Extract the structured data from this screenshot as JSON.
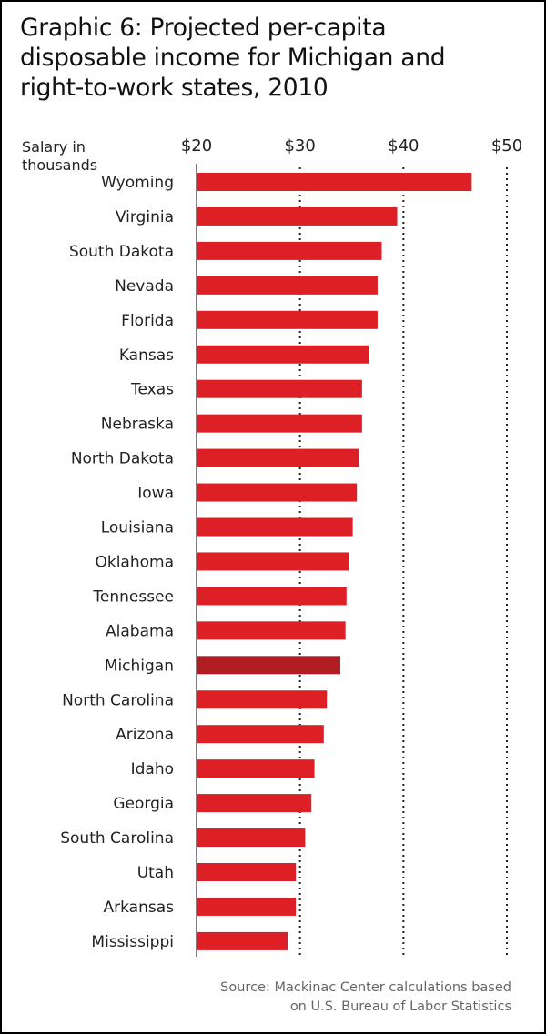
{
  "chart_data": {
    "type": "bar",
    "orientation": "horizontal",
    "title": "Graphic 6: Projected per-capita disposable income for Michigan and right-to-work states, 2010",
    "xlabel": "Salary in thousands",
    "ylabel": "",
    "xlim": [
      20,
      50
    ],
    "xticks": [
      20,
      30,
      40,
      50
    ],
    "xtick_labels": [
      "$20",
      "$30",
      "$40",
      "$50"
    ],
    "grid": "vertical dotted",
    "categories": [
      "Wyoming",
      "Virginia",
      "South Dakota",
      "Nevada",
      "Florida",
      "Kansas",
      "Texas",
      "Nebraska",
      "North Dakota",
      "Iowa",
      "Louisiana",
      "Oklahoma",
      "Tennessee",
      "Alabama",
      "Michigan",
      "North Carolina",
      "Arizona",
      "Idaho",
      "Georgia",
      "South Carolina",
      "Utah",
      "Arkansas",
      "Mississippi"
    ],
    "values": [
      46.6,
      39.4,
      37.9,
      37.5,
      37.5,
      36.7,
      36.0,
      36.0,
      35.7,
      35.5,
      35.1,
      34.7,
      34.5,
      34.4,
      33.9,
      32.6,
      32.3,
      31.4,
      31.1,
      30.5,
      29.6,
      29.6,
      28.8
    ],
    "highlight": "Michigan",
    "colors": {
      "bar": "#dd1f26",
      "highlight": "#b01e24",
      "grid": "#222222"
    },
    "source": "Source: Mackinac Center calculations based on U.S. Bureau of Labor Statistics"
  },
  "title_lines": [
    "Graphic 6: Projected per-capita",
    "disposable income for Michigan and",
    "right-to-work states, 2010"
  ],
  "ylabel_lines": [
    "Salary in",
    "thousands"
  ],
  "source_lines": [
    "Source: Mackinac Center calculations based",
    "on U.S. Bureau of Labor Statistics"
  ]
}
